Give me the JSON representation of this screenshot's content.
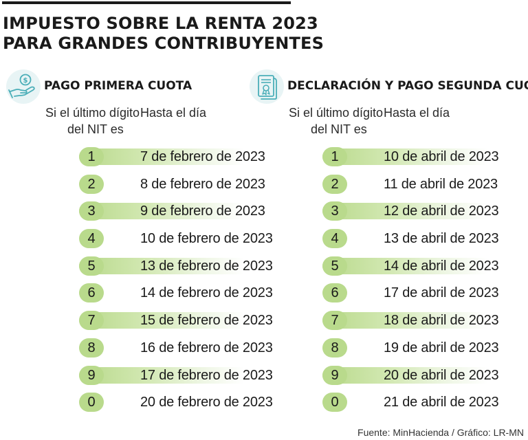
{
  "title": {
    "line1": "IMPUESTO SOBRE LA RENTA 2023",
    "line2": "PARA GRANDES CONTRIBUYENTES"
  },
  "columns": {
    "digit_line1": "Si el último dígito",
    "digit_line2": "del NIT es",
    "date": "Hasta el día"
  },
  "icons": {
    "left": "hand-coin-icon",
    "right": "certificate-document-icon",
    "accent": "#b9da8c"
  },
  "sections": [
    {
      "heading": "PAGO PRIMERA CUOTA",
      "rows": [
        {
          "digit": "1",
          "date": "7 de febrero de 2023"
        },
        {
          "digit": "2",
          "date": "8 de febrero de 2023"
        },
        {
          "digit": "3",
          "date": "9 de febrero de 2023"
        },
        {
          "digit": "4",
          "date": "10 de febrero de 2023"
        },
        {
          "digit": "5",
          "date": "13 de febrero de 2023"
        },
        {
          "digit": "6",
          "date": "14 de febrero de 2023"
        },
        {
          "digit": "7",
          "date": "15 de febrero de 2023"
        },
        {
          "digit": "8",
          "date": "16 de febrero de 2023"
        },
        {
          "digit": "9",
          "date": "17 de febrero de 2023"
        },
        {
          "digit": "0",
          "date": "20 de febrero de 2023"
        }
      ]
    },
    {
      "heading": "DECLARACIÓN Y PAGO SEGUNDA CUOTA",
      "rows": [
        {
          "digit": "1",
          "date": "10 de abril de 2023"
        },
        {
          "digit": "2",
          "date": "11 de abril de 2023"
        },
        {
          "digit": "3",
          "date": "12 de abril de 2023"
        },
        {
          "digit": "4",
          "date": "13 de abril de 2023"
        },
        {
          "digit": "5",
          "date": "14 de abril de 2023"
        },
        {
          "digit": "6",
          "date": "17 de abril de 2023"
        },
        {
          "digit": "7",
          "date": "18 de abril de 2023"
        },
        {
          "digit": "8",
          "date": "19 de abril de 2023"
        },
        {
          "digit": "9",
          "date": "20 de abril de 2023"
        },
        {
          "digit": "0",
          "date": "21 de abril de 2023"
        }
      ]
    }
  ],
  "source": "Fuente: MinHacienda / Gráfico: LR-MN"
}
